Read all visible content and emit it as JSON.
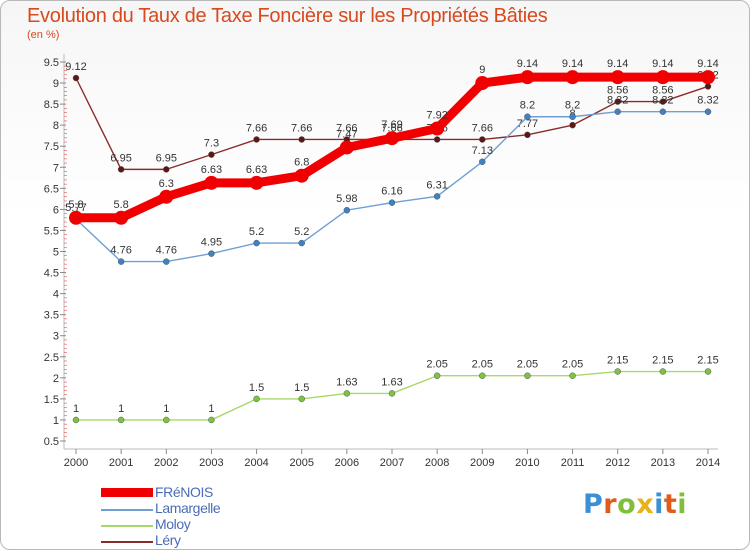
{
  "header": {
    "title": "Evolution du Taux de Taxe Foncière sur les Propriétés Bâties",
    "subtitle": "(en %)"
  },
  "brand": {
    "name": "Proxiti",
    "letters": [
      "P",
      "r",
      "o",
      "x",
      "i",
      "t",
      "i"
    ],
    "colors": [
      "#3b8fd4",
      "#e25b1c",
      "#7fbf3a",
      "#e8b21a",
      "#3b8fd4",
      "#e25b1c",
      "#7fbf3a"
    ]
  },
  "chart_data": {
    "type": "line",
    "title": "Evolution du Taux de Taxe Foncière sur les Propriétés Bâties",
    "ylabel": "(en %)",
    "xlabel": "",
    "ylim": [
      0.5,
      9.5
    ],
    "y_ticks": [
      "0.5",
      "1",
      "1.5",
      "2",
      "2.5",
      "3",
      "3.5",
      "4",
      "4.5",
      "5",
      "5.5",
      "6",
      "6.5",
      "7",
      "7.5",
      "8",
      "8.5",
      "9",
      "9.5"
    ],
    "grid": false,
    "legend_position": "bottom-left",
    "x": [
      "2000",
      "2001",
      "2002",
      "2003",
      "2004",
      "2005",
      "2006",
      "2007",
      "2008",
      "2009",
      "2010",
      "2011",
      "2012",
      "2013",
      "2014"
    ],
    "series": [
      {
        "name": "Léry",
        "color": "#8a2b2b",
        "marker": "#5e1515",
        "values": [
          9.12,
          6.95,
          6.95,
          7.3,
          7.66,
          7.66,
          7.66,
          7.66,
          7.66,
          7.66,
          7.77,
          8.0,
          8.56,
          8.56,
          8.92
        ],
        "labels": [
          "9.12",
          "6.95",
          "6.95",
          "7.3",
          "7.66",
          "7.66",
          "7.66",
          "7.66",
          "7.66",
          "7.66",
          "7.77",
          "8",
          "8.56",
          "8.56",
          "8.92"
        ]
      },
      {
        "name": "Moloy",
        "color": "#a6d96a",
        "marker": "#7cc43f",
        "values": [
          1,
          1,
          1,
          1,
          1.5,
          1.5,
          1.63,
          1.63,
          2.05,
          2.05,
          2.05,
          2.05,
          2.15,
          2.15,
          2.15
        ],
        "labels": [
          "1",
          "1",
          "1",
          "1",
          "1.5",
          "1.5",
          "1.63",
          "1.63",
          "2.05",
          "2.05",
          "2.05",
          "2.05",
          "2.15",
          "2.15",
          "2.15"
        ]
      },
      {
        "name": "Lamargelle",
        "color": "#6f9fd2",
        "marker": "#3d82c4",
        "values": [
          5.77,
          4.76,
          4.76,
          4.95,
          5.2,
          5.2,
          5.98,
          6.16,
          6.31,
          7.13,
          8.2,
          8.2,
          8.32,
          8.32,
          8.32
        ],
        "labels": [
          "5.77",
          "4.76",
          "4.76",
          "4.95",
          "5.2",
          "5.2",
          "5.98",
          "6.16",
          "6.31",
          "7.13",
          "8.2",
          "8.2",
          "8.32",
          "8.32",
          "8.32"
        ]
      },
      {
        "name": "FRéNOIS",
        "color": "#f00000",
        "marker": "#f00000",
        "values": [
          5.8,
          5.8,
          6.3,
          6.63,
          6.63,
          6.8,
          7.47,
          7.69,
          7.92,
          9.0,
          9.14,
          9.14,
          9.14,
          9.14,
          9.14
        ],
        "labels": [
          "5.8",
          "5.8",
          "6.3",
          "6.63",
          "6.63",
          "6.8",
          "7.47",
          "7.69",
          "7.92",
          "9",
          "9.14",
          "9.14",
          "9.14",
          "9.14",
          "9.14"
        ]
      }
    ],
    "legend": [
      "FRéNOIS",
      "Lamargelle",
      "Moloy",
      "Léry"
    ]
  }
}
